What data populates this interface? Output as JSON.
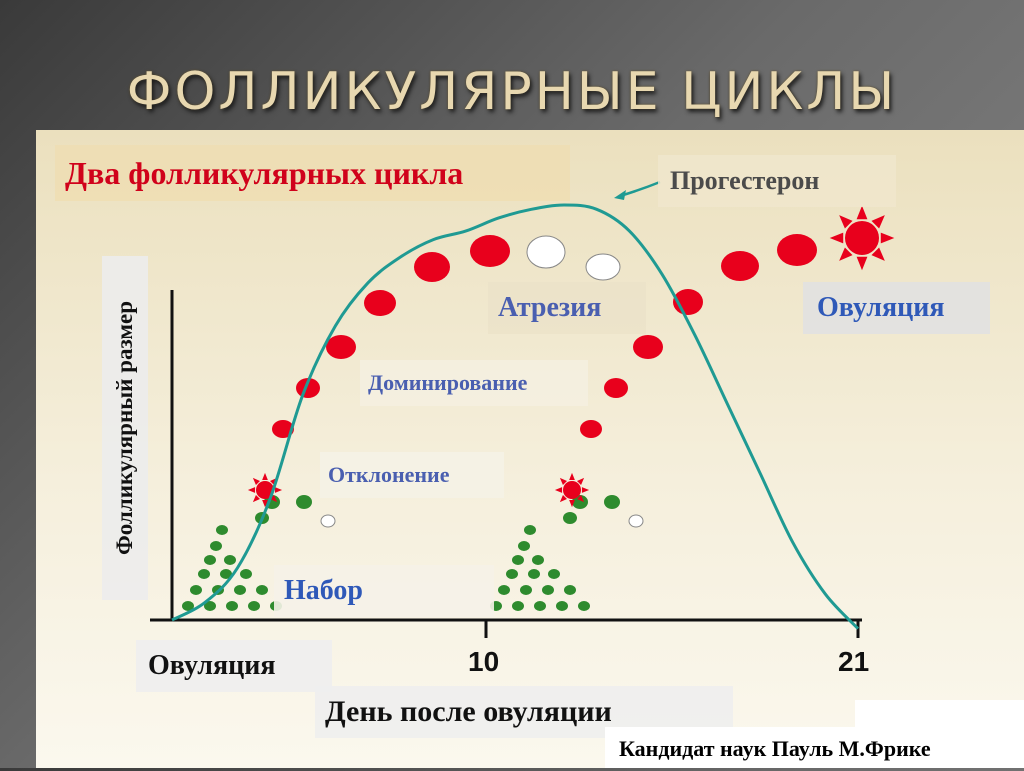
{
  "title": "ФОЛЛИКУЛЯРНЫЕ ЦИКЛЫ",
  "author": "Кандидат наук Пауль М.Фрике",
  "chart_data": {
    "type": "line",
    "title": "Два фолликулярных цикла",
    "ylabel": "Фолликулярный размер",
    "xlabel": "День после овуляции",
    "x_ticks": [
      {
        "value": 0,
        "label": "Овуляция"
      },
      {
        "value": 10,
        "label": "10"
      },
      {
        "value": 21,
        "label": "21"
      }
    ],
    "xlim": [
      0,
      21
    ],
    "series": [
      {
        "name": "Прогестерон",
        "color": "#1f9a93",
        "x": [
          0,
          1,
          2,
          3,
          4,
          5,
          6,
          7,
          8,
          9,
          10,
          11,
          12,
          13,
          14,
          15,
          16,
          17,
          18,
          19,
          20,
          21
        ],
        "y": [
          0.0,
          0.04,
          0.12,
          0.28,
          0.52,
          0.68,
          0.78,
          0.84,
          0.88,
          0.9,
          0.93,
          0.95,
          0.96,
          0.95,
          0.9,
          0.8,
          0.66,
          0.5,
          0.34,
          0.18,
          0.06,
          -0.02
        ]
      }
    ],
    "annotations": [
      "Прогестерон",
      "Атрезия",
      "Овуляция",
      "Доминирование",
      "Отклонение",
      "Набор"
    ],
    "colors": {
      "dominant_follicle": "#e8001c",
      "atretic_follicle": "#ffffff",
      "recruited_follicle": "#2e8b2e",
      "ovulation_star": "#e8001c",
      "curve": "#1f9a93"
    }
  }
}
